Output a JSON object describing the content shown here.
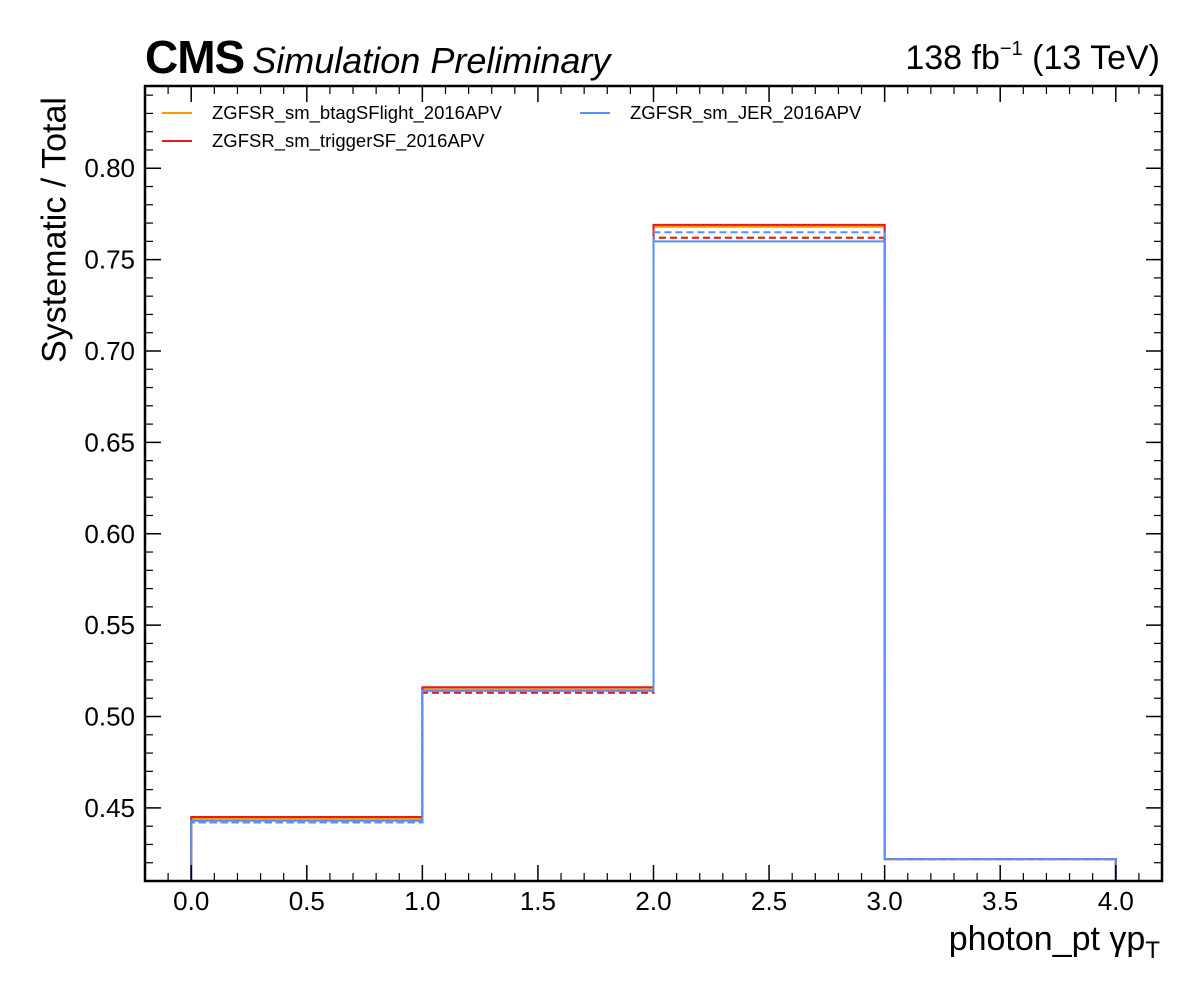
{
  "header": {
    "cms": "CMS",
    "subtitle": "Simulation Preliminary",
    "lumi_value": "138 fb",
    "lumi_exp": "−1",
    "lumi_energy": " (13 TeV)"
  },
  "chart_data": {
    "type": "step-histogram",
    "xlabel": "photon_pt   γp",
    "xlabel_sub": "T",
    "ylabel": "Systematic / Total",
    "xlim": [
      -0.2,
      4.2
    ],
    "ylim": [
      0.41,
      0.845
    ],
    "x_ticks": [
      "0.0",
      "0.5",
      "1.0",
      "1.5",
      "2.0",
      "2.5",
      "3.0",
      "3.5",
      "4.0"
    ],
    "y_ticks": [
      "0.45",
      "0.50",
      "0.55",
      "0.60",
      "0.65",
      "0.70",
      "0.75",
      "0.80"
    ],
    "bin_edges": [
      0,
      1,
      2,
      3,
      4
    ],
    "series": [
      {
        "name": "ZGFSR_sm_btagSFlight_2016APV",
        "color": "#ff9900",
        "up": [
          0.444,
          0.515,
          0.768,
          0.422
        ],
        "down": [
          0.442,
          0.513,
          0.762,
          0.422
        ]
      },
      {
        "name": "ZGFSR_sm_triggerSF_2016APV",
        "color": "#e41a1c",
        "up": [
          0.445,
          0.516,
          0.769,
          0.422
        ],
        "down": [
          0.442,
          0.513,
          0.762,
          0.422
        ]
      },
      {
        "name": "ZGFSR_sm_JER_2016APV",
        "color": "#5790fc",
        "up": [
          0.443,
          0.514,
          0.76,
          0.422
        ],
        "down": [
          0.442,
          0.514,
          0.765,
          0.422
        ]
      }
    ],
    "legend_placement": "top-left, two columns",
    "grid": false
  }
}
